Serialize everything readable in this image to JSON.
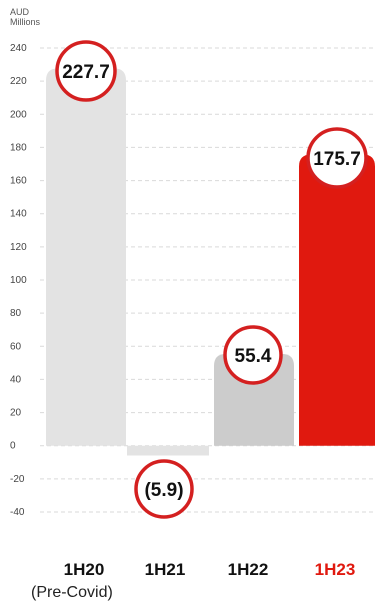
{
  "chart_data": {
    "type": "bar",
    "unit_label": [
      "AUD",
      "Millions"
    ],
    "categories": [
      "1H20",
      "1H21",
      "1H22",
      "1H23"
    ],
    "category_notes": [
      "(Pre-Covid)",
      "",
      "",
      ""
    ],
    "values": [
      227.7,
      -5.9,
      55.4,
      175.7
    ],
    "data_labels": [
      "227.7",
      "(5.9)",
      "55.4",
      "175.7"
    ],
    "ylim": [
      -40,
      240
    ],
    "yticks": [
      240,
      220,
      200,
      180,
      160,
      140,
      120,
      100,
      80,
      60,
      40,
      20,
      0,
      -20,
      -40
    ],
    "grid": true,
    "colors": {
      "bar_default": "#e3e3e3",
      "bar_third": "#cccccc",
      "bar_highlight": "#e0190f",
      "label_highlight": "#e0190f",
      "circle_stroke": "#d42020"
    }
  }
}
